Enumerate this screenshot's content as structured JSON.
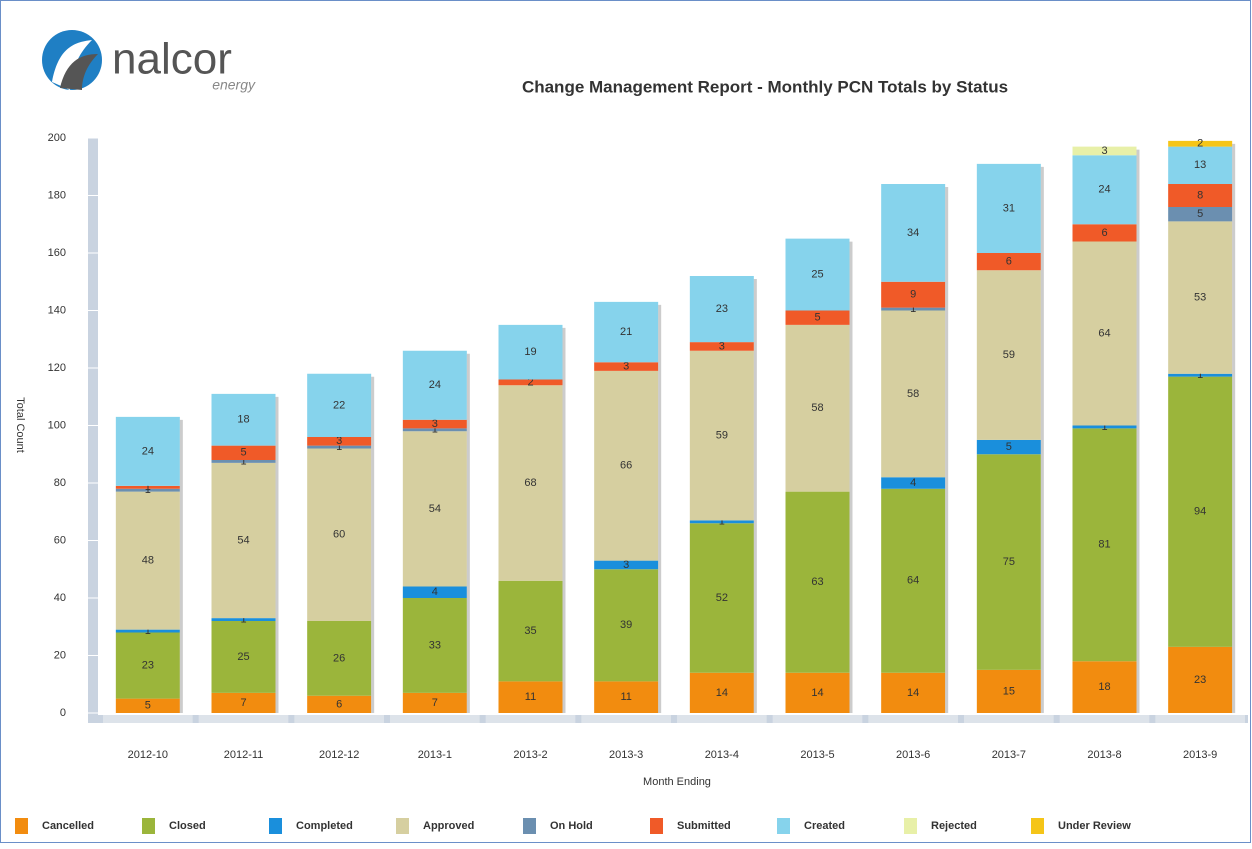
{
  "logo": {
    "name": "nalcor",
    "tagline": "energy"
  },
  "chart_data": {
    "type": "stacked_bar",
    "title": "Change Management Report - Monthly PCN Totals by Status",
    "x_label": "Month Ending",
    "y_label": "Total Count",
    "categories": [
      "2012-10",
      "2012-11",
      "2012-12",
      "2013-1",
      "2013-2",
      "2013-3",
      "2013-4",
      "2013-5",
      "2013-6",
      "2013-7",
      "2013-8",
      "2013-9"
    ],
    "ylim": [
      0,
      200
    ],
    "yticks": [
      0,
      20,
      40,
      60,
      80,
      100,
      120,
      140,
      160,
      180,
      200
    ],
    "legend": "bottom",
    "series": [
      {
        "name": "Cancelled",
        "color": "#f28c0f",
        "values": [
          5,
          7,
          6,
          7,
          11,
          11,
          14,
          14,
          14,
          15,
          18,
          23
        ]
      },
      {
        "name": "Closed",
        "color": "#9bb53b",
        "values": [
          23,
          25,
          26,
          33,
          35,
          39,
          52,
          63,
          64,
          75,
          81,
          94
        ]
      },
      {
        "name": "Completed",
        "color": "#1a8fdc",
        "values": [
          1,
          1,
          null,
          4,
          null,
          3,
          1,
          null,
          4,
          5,
          1,
          1
        ]
      },
      {
        "name": "Approved",
        "color": "#d6cfa0",
        "values": [
          48,
          54,
          60,
          54,
          68,
          66,
          59,
          58,
          58,
          59,
          64,
          53
        ]
      },
      {
        "name": "On Hold",
        "color": "#6b8fb0",
        "values": [
          1,
          1,
          1,
          1,
          null,
          null,
          null,
          null,
          1,
          null,
          null,
          5
        ]
      },
      {
        "name": "Submitted",
        "color": "#f05a28",
        "values": [
          1,
          5,
          3,
          3,
          2,
          3,
          3,
          5,
          9,
          6,
          6,
          8
        ]
      },
      {
        "name": "Created",
        "color": "#86d3ec",
        "values": [
          24,
          18,
          22,
          24,
          19,
          21,
          23,
          25,
          34,
          31,
          24,
          13
        ]
      },
      {
        "name": "Rejected",
        "color": "#e8f0a8",
        "values": [
          null,
          null,
          null,
          null,
          null,
          null,
          null,
          null,
          null,
          null,
          3,
          null
        ]
      },
      {
        "name": "Under Review",
        "color": "#f5c518",
        "values": [
          null,
          null,
          null,
          null,
          null,
          null,
          null,
          null,
          null,
          null,
          null,
          2
        ]
      }
    ]
  }
}
